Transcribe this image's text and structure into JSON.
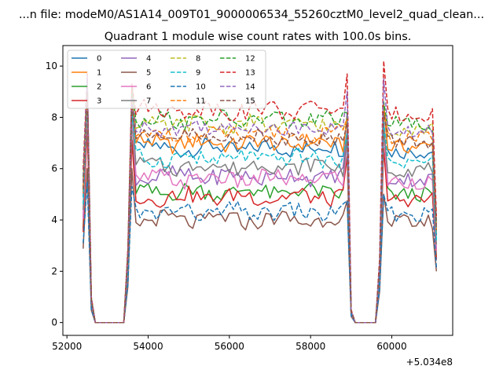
{
  "figure_title": "...n file: modeM0/AS1A14_009T01_9000006534_55260cztM0_level2_quad_clean...",
  "chart_data": {
    "type": "line",
    "title": "Quadrant 1 module wise count rates with 100.0s bins.",
    "xlabel": "",
    "ylabel": "",
    "x_offset_label": "+5.034e8",
    "xlim": [
      51900,
      61500
    ],
    "ylim": [
      -0.5,
      10.8
    ],
    "xticks": [
      52000,
      54000,
      56000,
      58000,
      60000
    ],
    "yticks": [
      0,
      2,
      4,
      6,
      8,
      10
    ],
    "grid": false,
    "legend_position": "upper left",
    "legend_columns": 4,
    "x_range": [
      52400,
      61100
    ],
    "bin_size": 100,
    "series": [
      {
        "name": "0",
        "color": "#1f77b4",
        "dash": "solid",
        "baseline": 6.8,
        "peak1": 9.5,
        "peak2": 8.6,
        "peak3": 8.6
      },
      {
        "name": "1",
        "color": "#ff7f0e",
        "dash": "solid",
        "baseline": 7.0,
        "peak1": 9.0,
        "peak2": 8.8,
        "peak3": 8.5
      },
      {
        "name": "2",
        "color": "#2ca02c",
        "dash": "solid",
        "baseline": 5.1,
        "peak1": 8.4,
        "peak2": 8.0,
        "peak3": 7.6
      },
      {
        "name": "3",
        "color": "#d62728",
        "dash": "solid",
        "baseline": 4.9,
        "peak1": 7.7,
        "peak2": 7.1,
        "peak3": 6.8
      },
      {
        "name": "4",
        "color": "#9467bd",
        "dash": "solid",
        "baseline": 5.7,
        "peak1": 9.0,
        "peak2": 8.2,
        "peak3": 7.9
      },
      {
        "name": "5",
        "color": "#8c564b",
        "dash": "solid",
        "baseline": 4.0,
        "peak1": 6.0,
        "peak2": 6.0,
        "peak3": 5.0
      },
      {
        "name": "6",
        "color": "#e377c2",
        "dash": "solid",
        "baseline": 5.6,
        "peak1": 8.5,
        "peak2": 8.0,
        "peak3": 7.4
      },
      {
        "name": "7",
        "color": "#7f7f7f",
        "dash": "solid",
        "baseline": 6.1,
        "peak1": 8.8,
        "peak2": 8.4,
        "peak3": 7.6
      },
      {
        "name": "8",
        "color": "#bcbd22",
        "dash": "dashed",
        "baseline": 7.7,
        "peak1": 9.2,
        "peak2": 8.9,
        "peak3": 8.3
      },
      {
        "name": "9",
        "color": "#17becf",
        "dash": "dashed",
        "baseline": 6.4,
        "peak1": 8.6,
        "peak2": 8.2,
        "peak3": 7.8
      },
      {
        "name": "10",
        "color": "#1f77b4",
        "dash": "dashed",
        "baseline": 4.3,
        "peak1": 5.5,
        "peak2": 5.3,
        "peak3": 5.0
      },
      {
        "name": "11",
        "color": "#ff7f0e",
        "dash": "dashed",
        "baseline": 7.3,
        "peak1": 9.1,
        "peak2": 8.7,
        "peak3": 8.4
      },
      {
        "name": "12",
        "color": "#2ca02c",
        "dash": "dashed",
        "baseline": 7.9,
        "peak1": 9.5,
        "peak2": 9.2,
        "peak3": 8.6
      },
      {
        "name": "13",
        "color": "#d62728",
        "dash": "dashed",
        "baseline": 8.3,
        "peak1": 9.7,
        "peak2": 9.3,
        "peak3": 10.2
      },
      {
        "name": "14",
        "color": "#9467bd",
        "dash": "dashed",
        "baseline": 7.6,
        "peak1": 9.6,
        "peak2": 8.8,
        "peak3": 9.5
      },
      {
        "name": "15",
        "color": "#8c564b",
        "dash": "dashed",
        "baseline": 7.2,
        "peak1": 9.0,
        "peak2": 8.5,
        "peak3": 8.2
      }
    ]
  }
}
